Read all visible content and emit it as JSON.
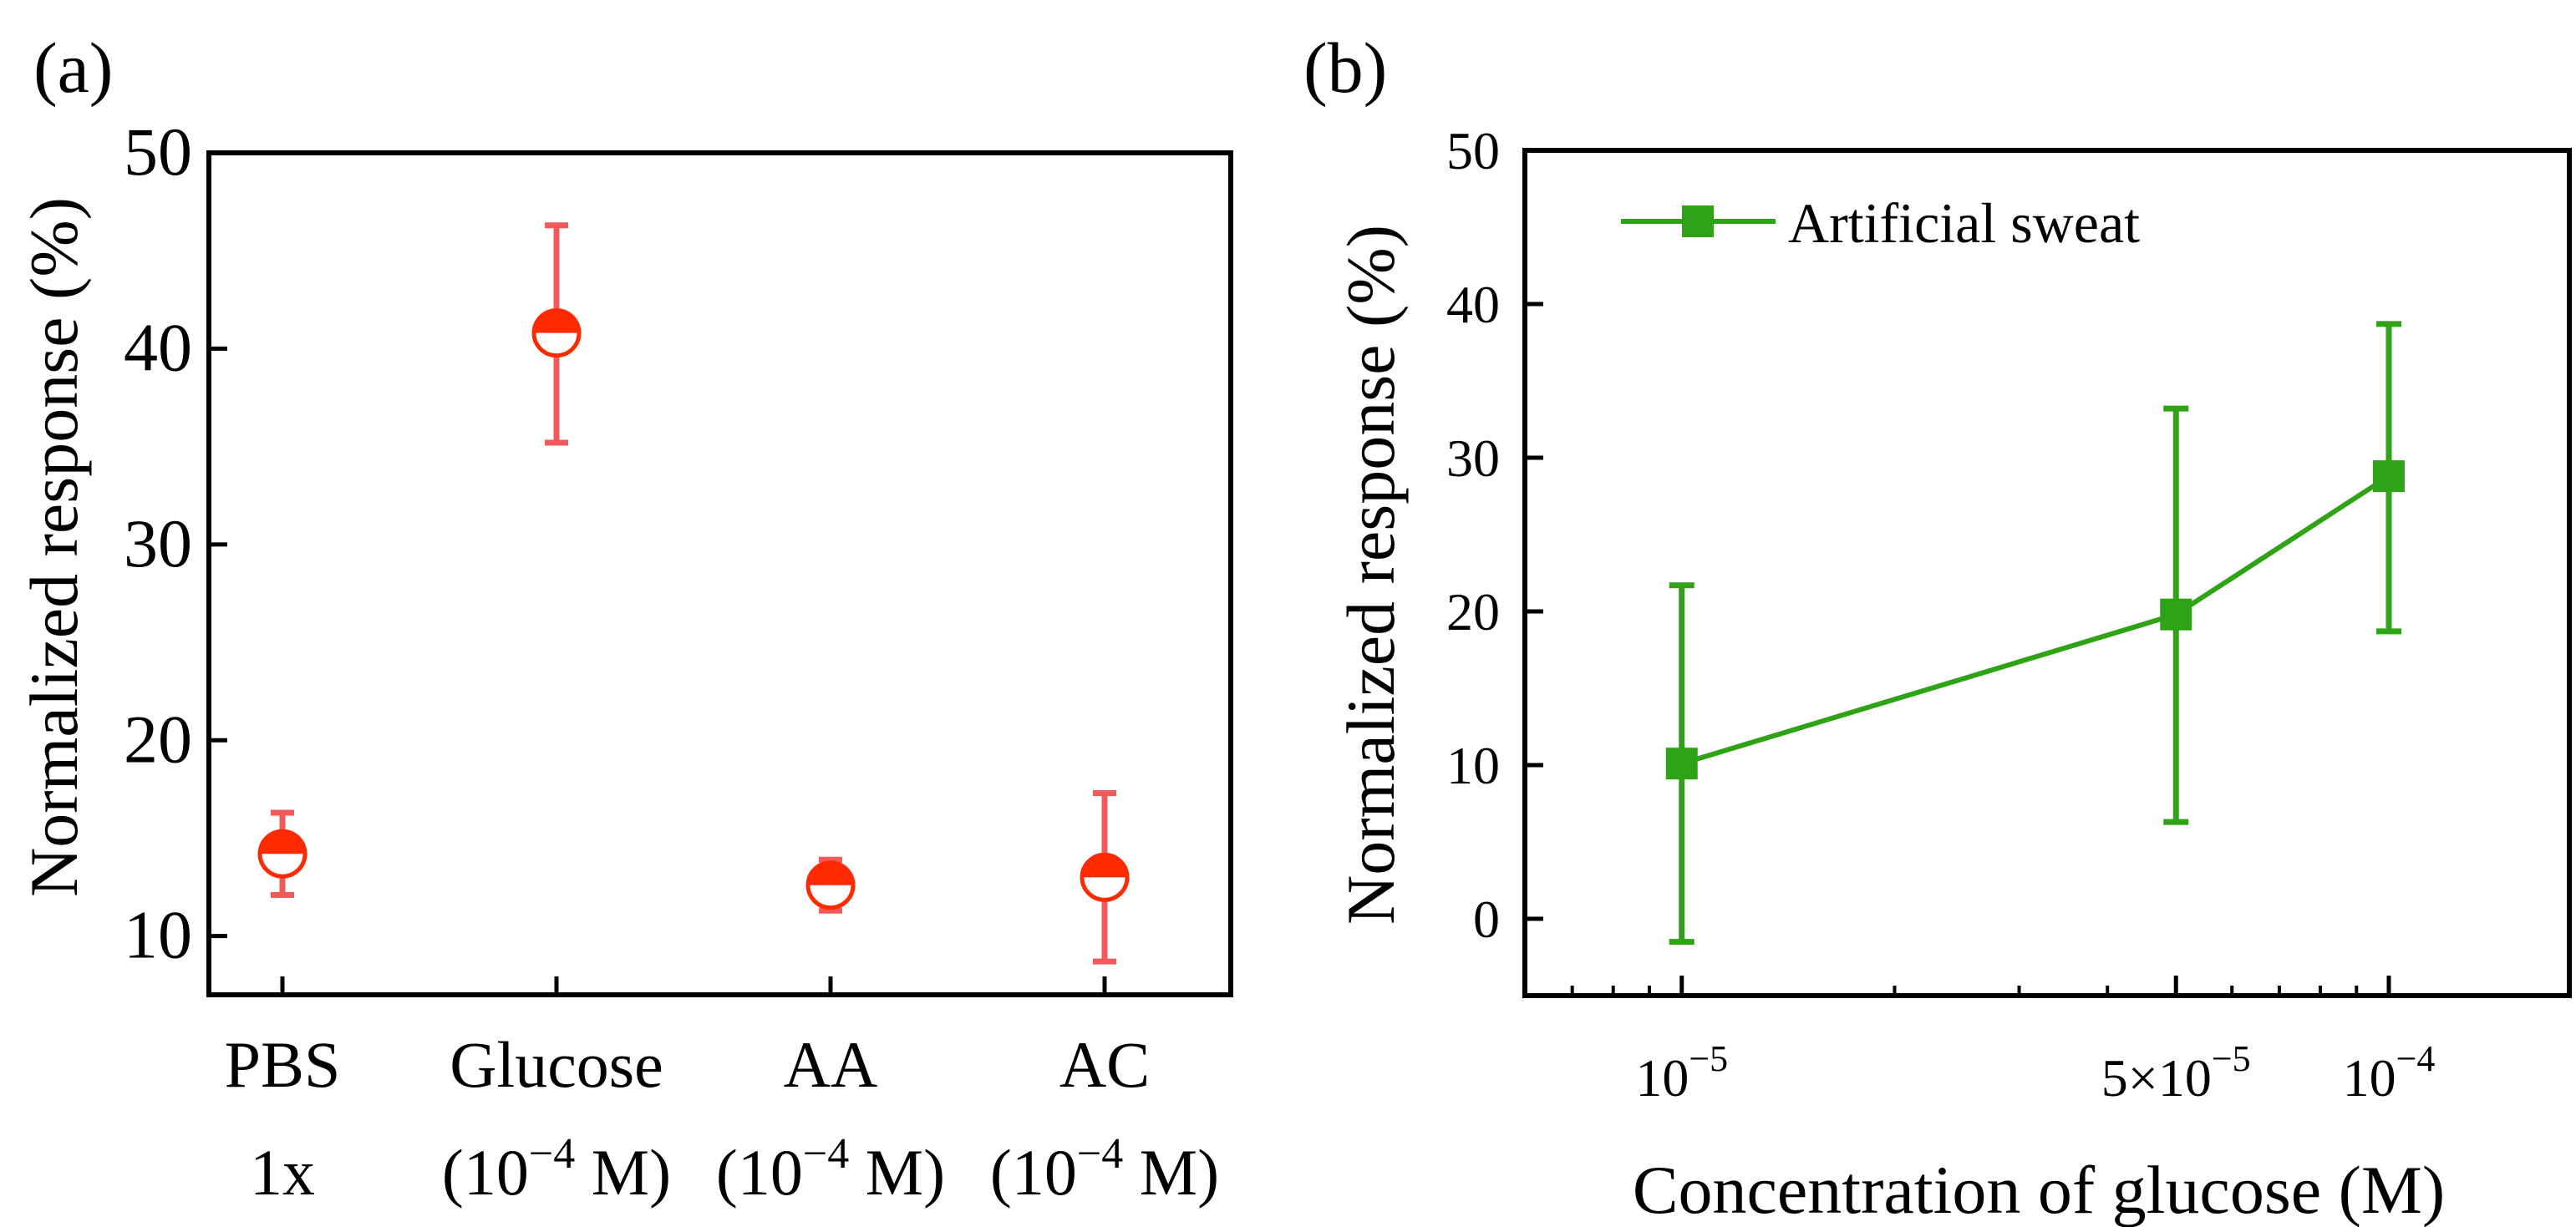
{
  "colors": {
    "panel_a": "#f05a5a",
    "panel_a_marker": "#ff2a00",
    "panel_b": "#2ea315",
    "axis": "#000000"
  },
  "chart_data": [
    {
      "type": "scatter",
      "panel_label": "(a)",
      "title": "",
      "xlabel": "",
      "ylabel": "Normalized response (%)",
      "ylim": [
        7,
        50
      ],
      "yticks": [
        10,
        20,
        30,
        40,
        50
      ],
      "categories": [
        {
          "line1": "PBS",
          "line2": "1x",
          "exp": ""
        },
        {
          "line1": "Glucose",
          "line2": "(10",
          "exp": "−4",
          "line2_end": " M)"
        },
        {
          "line1": "AA",
          "line2": "(10",
          "exp": "−4",
          "line2_end": " M)"
        },
        {
          "line1": "AC",
          "line2": "(10",
          "exp": "−4",
          "line2_end": " M)"
        }
      ],
      "values": [
        14.2,
        40.8,
        12.6,
        13.0
      ],
      "error_low": [
        12.1,
        35.2,
        11.3,
        8.7
      ],
      "error_high": [
        16.3,
        46.3,
        13.9,
        17.3
      ],
      "marker": "half-filled-circle",
      "grid": false,
      "legend": "none"
    },
    {
      "type": "line",
      "panel_label": "(b)",
      "title": "",
      "xlabel": "Concentration of glucose (M)",
      "ylabel": "Normalized response (%)",
      "xscale": "log",
      "xlim": [
        6e-06,
        0.00018
      ],
      "ylim": [
        -5,
        50
      ],
      "yticks": [
        0,
        10,
        20,
        30,
        40,
        50
      ],
      "xticks": [
        {
          "value": 1e-05,
          "base": "10",
          "exp": "−5"
        },
        {
          "value": 5e-05,
          "base": "5×10",
          "exp": "−5"
        },
        {
          "value": 0.0001,
          "base": "10",
          "exp": "−4"
        }
      ],
      "series": [
        {
          "name": "Artificial sweat",
          "x": [
            1e-05,
            5e-05,
            0.0001
          ],
          "values": [
            10.1,
            19.8,
            28.8
          ],
          "error_low": [
            -1.5,
            6.3,
            18.7
          ],
          "error_high": [
            21.7,
            33.2,
            38.7
          ],
          "marker": "square"
        }
      ],
      "grid": false,
      "legend": "top-left"
    }
  ]
}
